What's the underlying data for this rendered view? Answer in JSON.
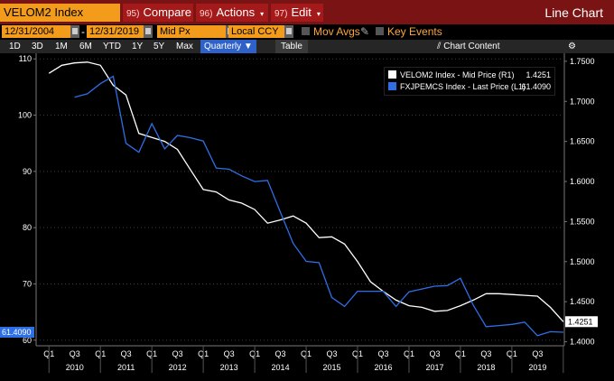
{
  "toolbar": {
    "ticker": "VELOM2 Index",
    "compare": {
      "num": "95)",
      "label": "Compare"
    },
    "actions": {
      "num": "96)",
      "label": "Actions"
    },
    "edit": {
      "num": "97)",
      "label": "Edit"
    },
    "title": "Line Chart"
  },
  "daterow": {
    "start_date": "12/31/2004",
    "end_date": "12/31/2019",
    "price_field": "Mid Px",
    "currency": "Local CCY",
    "mov_avgs": "Mov Avgs",
    "key_events": "Key Events"
  },
  "range": {
    "options": [
      "1D",
      "3D",
      "1M",
      "6M",
      "YTD",
      "1Y",
      "5Y",
      "Max"
    ],
    "frequency": "Quarterly",
    "table": "Table",
    "chart_content": "Chart Content"
  },
  "legend": [
    {
      "name": "VELOM2 Index - Mid Price (R1)",
      "value": "1.4251",
      "color": "#ffffff"
    },
    {
      "name": "FXJPEMCS Index - Last Price (L1)",
      "value": "61.4090",
      "color": "#2e6fe6"
    }
  ],
  "badges": {
    "left": "61.4090",
    "right": "1.4251"
  },
  "chart_data": {
    "type": "line",
    "x_quarter_labels": [
      "Q1",
      "Q3",
      "Q1",
      "Q3",
      "Q1",
      "Q3",
      "Q1",
      "Q3",
      "Q1",
      "Q3",
      "Q1",
      "Q3",
      "Q1",
      "Q3",
      "Q1",
      "Q3",
      "Q1",
      "Q3",
      "Q1",
      "Q3"
    ],
    "x_year_labels": [
      "2010",
      "2011",
      "2012",
      "2013",
      "2014",
      "2015",
      "2016",
      "2017",
      "2018",
      "2019"
    ],
    "left_axis": {
      "ticks": [
        60,
        70,
        80,
        90,
        100,
        110
      ],
      "ylim": [
        59,
        111
      ]
    },
    "right_axis": {
      "ticks": [
        "1.4000",
        "1.4500",
        "1.5000",
        "1.5500",
        "1.6000",
        "1.6500",
        "1.7000",
        "1.7500"
      ],
      "ylim": [
        1.395,
        1.76
      ]
    },
    "series": [
      {
        "name": "VELOM2 Index - Mid Price (R1)",
        "axis": "right",
        "color": "#ffffff",
        "x": [
          "2009-12-31",
          "2010-03-31",
          "2010-06-30",
          "2010-09-30",
          "2010-12-31",
          "2011-03-31",
          "2011-06-30",
          "2011-09-30",
          "2011-12-31",
          "2012-03-31",
          "2012-06-30",
          "2012-09-30",
          "2012-12-31",
          "2013-03-31",
          "2013-06-30",
          "2013-09-30",
          "2013-12-31",
          "2014-03-31",
          "2014-06-30",
          "2014-09-30",
          "2014-12-31",
          "2015-03-31",
          "2015-06-30",
          "2015-09-30",
          "2015-12-31",
          "2016-03-31",
          "2016-06-30",
          "2016-09-30",
          "2016-12-31",
          "2017-03-31",
          "2017-06-30",
          "2017-09-30",
          "2017-12-31",
          "2018-03-31",
          "2018-06-30",
          "2018-09-30",
          "2018-12-31",
          "2019-03-31",
          "2019-06-30",
          "2019-09-30",
          "2019-12-31"
        ],
        "values": [
          1.735,
          1.745,
          1.748,
          1.749,
          1.745,
          1.72,
          1.708,
          1.66,
          1.655,
          1.65,
          1.64,
          1.615,
          1.59,
          1.587,
          1.577,
          1.573,
          1.565,
          1.548,
          1.552,
          1.557,
          1.548,
          1.53,
          1.531,
          1.522,
          1.5,
          1.475,
          1.463,
          1.452,
          1.445,
          1.443,
          1.438,
          1.439,
          1.445,
          1.452,
          1.46,
          1.46,
          1.459,
          1.458,
          1.457,
          1.443,
          1.4251
        ]
      },
      {
        "name": "FXJPEMCS Index - Last Price (L1)",
        "axis": "left",
        "color": "#2e6fe6",
        "x": [
          "2010-06-30",
          "2010-09-30",
          "2010-12-31",
          "2011-03-31",
          "2011-06-30",
          "2011-09-30",
          "2011-12-31",
          "2012-03-31",
          "2012-06-30",
          "2012-09-30",
          "2012-12-31",
          "2013-03-31",
          "2013-06-30",
          "2013-09-30",
          "2013-12-31",
          "2014-03-31",
          "2014-06-30",
          "2014-09-30",
          "2014-12-31",
          "2015-03-31",
          "2015-06-30",
          "2015-09-30",
          "2015-12-31",
          "2016-03-31",
          "2016-06-30",
          "2016-09-30",
          "2016-12-31",
          "2017-03-31",
          "2017-06-30",
          "2017-09-30",
          "2017-12-31",
          "2018-03-31",
          "2018-06-30",
          "2018-09-30",
          "2018-12-31",
          "2019-03-31",
          "2019-06-30",
          "2019-09-30",
          "2019-12-31"
        ],
        "values": [
          103.2,
          103.8,
          105.6,
          106.9,
          95.0,
          93.4,
          98.5,
          94.0,
          96.4,
          96.0,
          95.4,
          90.6,
          90.4,
          89.2,
          88.2,
          88.4,
          82.8,
          77.2,
          74.0,
          73.8,
          67.6,
          66.0,
          68.7,
          68.7,
          68.7,
          66.0,
          68.6,
          69.1,
          69.6,
          69.7,
          71.0,
          66.2,
          62.4,
          62.6,
          62.8,
          63.2,
          60.8,
          61.5,
          61.409
        ]
      }
    ]
  }
}
